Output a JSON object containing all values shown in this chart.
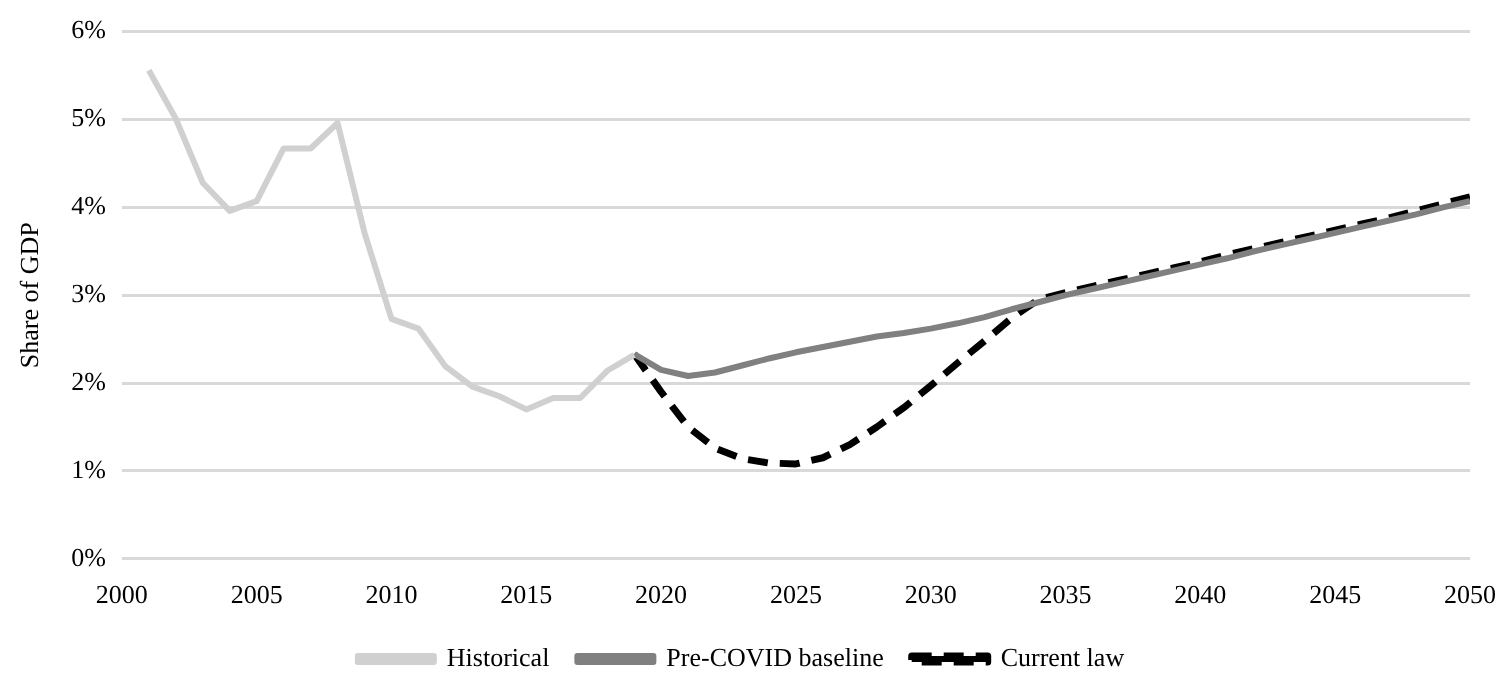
{
  "chart_data": {
    "type": "line",
    "ylabel": "Share of GDP",
    "xlim": [
      2000,
      2050
    ],
    "xticks": [
      2000,
      2005,
      2010,
      2015,
      2020,
      2025,
      2030,
      2035,
      2040,
      2045,
      2050
    ],
    "ylim": [
      0,
      6
    ],
    "yticks": [
      {
        "value": 0,
        "label": "0%"
      },
      {
        "value": 1,
        "label": "1%"
      },
      {
        "value": 2,
        "label": "2%"
      },
      {
        "value": 3,
        "label": "3%"
      },
      {
        "value": 4,
        "label": "4%"
      },
      {
        "value": 5,
        "label": "5%"
      },
      {
        "value": 6,
        "label": "6%"
      }
    ],
    "grid": "y",
    "legend": "bottom",
    "marker": "none",
    "series": [
      {
        "name": "Historical",
        "color": "#d0d0d0",
        "line_style": "solid",
        "x": [
          2001,
          2002,
          2003,
          2004,
          2005,
          2006,
          2007,
          2008,
          2009,
          2010,
          2011,
          2012,
          2013,
          2014,
          2015,
          2016,
          2017,
          2018,
          2019
        ],
        "values": [
          5.56,
          5.01,
          4.28,
          3.96,
          4.07,
          4.67,
          4.67,
          4.96,
          3.71,
          2.73,
          2.62,
          2.19,
          1.96,
          1.85,
          1.7,
          1.83,
          1.83,
          2.14,
          2.32
        ]
      },
      {
        "name": "Pre-COVID baseline",
        "color": "#808080",
        "line_style": "solid",
        "x": [
          2019,
          2020,
          2021,
          2022,
          2023,
          2024,
          2025,
          2026,
          2027,
          2028,
          2029,
          2030,
          2031,
          2032,
          2033,
          2034,
          2035,
          2036,
          2037,
          2038,
          2039,
          2040,
          2041,
          2042,
          2043,
          2044,
          2045,
          2046,
          2047,
          2048,
          2049,
          2050
        ],
        "values": [
          2.33,
          2.15,
          2.08,
          2.12,
          2.2,
          2.28,
          2.35,
          2.41,
          2.47,
          2.53,
          2.57,
          2.62,
          2.68,
          2.75,
          2.84,
          2.92,
          3.0,
          3.07,
          3.14,
          3.21,
          3.28,
          3.35,
          3.42,
          3.5,
          3.57,
          3.64,
          3.71,
          3.78,
          3.85,
          3.92,
          4.0,
          4.07
        ]
      },
      {
        "name": "Current law",
        "color": "#000000",
        "line_style": "dashed",
        "x": [
          2019,
          2020,
          2021,
          2022,
          2023,
          2024,
          2025,
          2026,
          2027,
          2028,
          2029,
          2030,
          2031,
          2032,
          2033,
          2034,
          2035,
          2036,
          2037,
          2038,
          2039,
          2040,
          2041,
          2042,
          2043,
          2044,
          2045,
          2046,
          2047,
          2048,
          2049,
          2050
        ],
        "values": [
          2.33,
          1.9,
          1.5,
          1.26,
          1.14,
          1.09,
          1.08,
          1.15,
          1.3,
          1.5,
          1.72,
          1.97,
          2.23,
          2.48,
          2.74,
          2.95,
          3.03,
          3.1,
          3.17,
          3.24,
          3.31,
          3.38,
          3.46,
          3.53,
          3.6,
          3.67,
          3.74,
          3.81,
          3.88,
          3.96,
          4.04,
          4.12
        ]
      }
    ]
  }
}
